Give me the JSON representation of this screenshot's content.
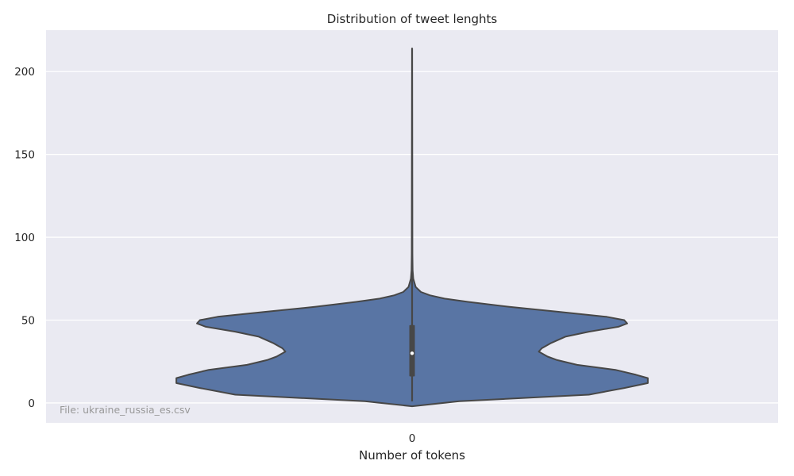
{
  "chart_data": {
    "type": "violin",
    "title": "Distribution of tweet lenghts",
    "xlabel": "Number of tokens",
    "ylabel": "",
    "categories": [
      "0"
    ],
    "yticks": [
      0,
      50,
      100,
      150,
      200
    ],
    "ylim": [
      -12,
      225
    ],
    "grid": true,
    "annotation": "File: ukraine_russia_es.csv",
    "colors": {
      "background": "#eaeaf2",
      "violin_fill": "#5975a4",
      "violin_edge": "#474747",
      "box": "#474747",
      "median": "#ffffff",
      "grid": "#ffffff"
    },
    "violin": {
      "min": 1,
      "max": 214,
      "q1": 16,
      "median": 30,
      "q3": 47,
      "whisker_low": 1,
      "whisker_high": 214,
      "density_profile": [
        {
          "y": -2,
          "width": 0.0
        },
        {
          "y": 1,
          "width": 0.16
        },
        {
          "y": 5,
          "width": 0.6
        },
        {
          "y": 9,
          "width": 0.72
        },
        {
          "y": 12,
          "width": 0.8
        },
        {
          "y": 15,
          "width": 0.8
        },
        {
          "y": 17,
          "width": 0.76
        },
        {
          "y": 20,
          "width": 0.69
        },
        {
          "y": 23,
          "width": 0.56
        },
        {
          "y": 26,
          "width": 0.49
        },
        {
          "y": 28,
          "width": 0.46
        },
        {
          "y": 31,
          "width": 0.43
        },
        {
          "y": 33,
          "width": 0.44
        },
        {
          "y": 36,
          "width": 0.47
        },
        {
          "y": 40,
          "width": 0.52
        },
        {
          "y": 43,
          "width": 0.6
        },
        {
          "y": 46,
          "width": 0.7
        },
        {
          "y": 48,
          "width": 0.73
        },
        {
          "y": 50,
          "width": 0.72
        },
        {
          "y": 52,
          "width": 0.66
        },
        {
          "y": 55,
          "width": 0.5
        },
        {
          "y": 58,
          "width": 0.33
        },
        {
          "y": 61,
          "width": 0.19
        },
        {
          "y": 63,
          "width": 0.11
        },
        {
          "y": 65,
          "width": 0.06
        },
        {
          "y": 67,
          "width": 0.03
        },
        {
          "y": 70,
          "width": 0.012
        },
        {
          "y": 75,
          "width": 0.004
        },
        {
          "y": 80,
          "width": 0.002
        },
        {
          "y": 90,
          "width": 0.001
        },
        {
          "y": 214,
          "width": 0.0
        }
      ]
    }
  }
}
